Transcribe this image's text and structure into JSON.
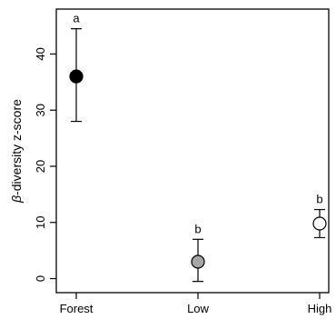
{
  "chart_data": {
    "type": "scatter",
    "title": "",
    "xlabel": "",
    "ylabel_symbol": "β",
    "ylabel": "-diversity z-score",
    "categories": [
      "Forest",
      "Low",
      "High"
    ],
    "points": [
      {
        "category": "Forest",
        "value": 36,
        "lower": 28,
        "upper": 44.5,
        "letter": "a",
        "fill": "#000000"
      },
      {
        "category": "Low",
        "value": 3,
        "lower": -0.5,
        "upper": 7,
        "letter": "b",
        "fill": "#a6a6a6"
      },
      {
        "category": "High",
        "value": 9.8,
        "lower": 7.3,
        "upper": 12.3,
        "letter": "b",
        "fill": "#ffffff"
      }
    ],
    "yticks": [
      0,
      10,
      20,
      30,
      40
    ],
    "ylim": [
      -2.5,
      48
    ],
    "grid": false,
    "legend": "none"
  }
}
